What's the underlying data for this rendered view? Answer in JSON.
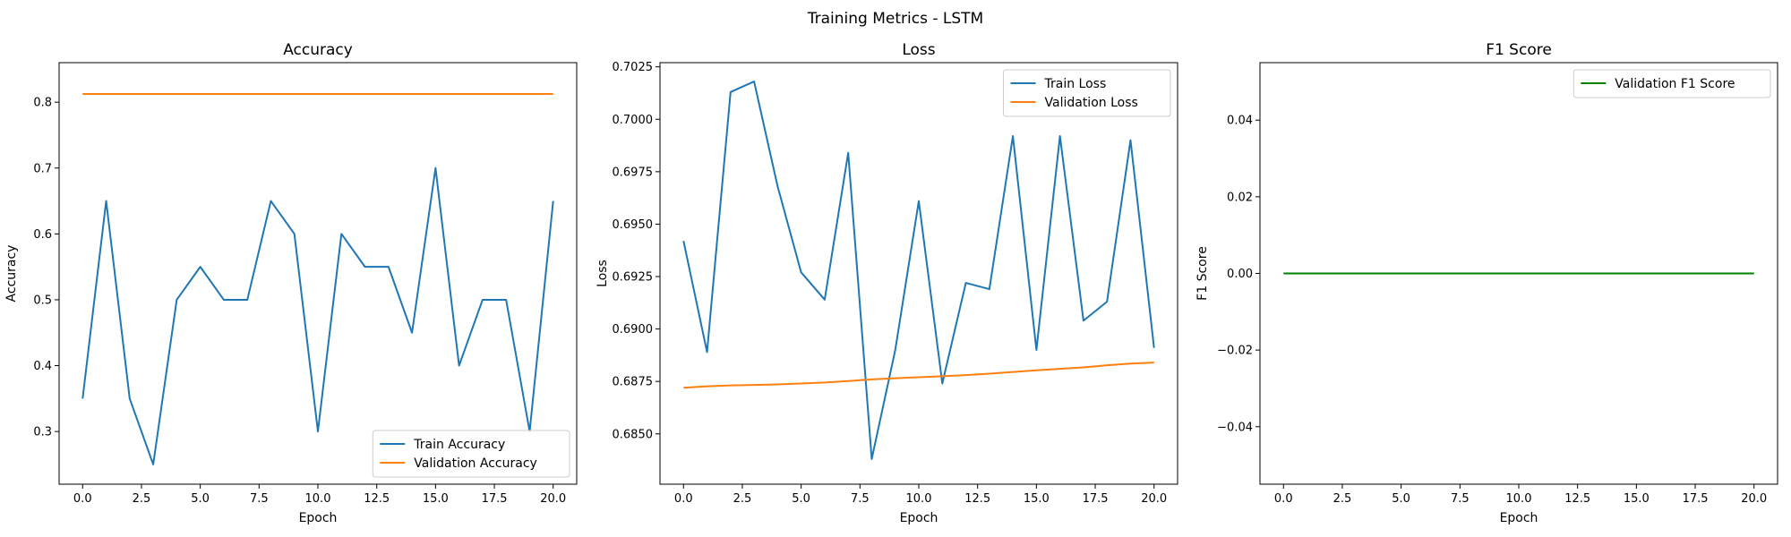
{
  "figure_title": "Training Metrics - LSTM",
  "chart_data": [
    {
      "type": "line",
      "title": "Accuracy",
      "xlabel": "Epoch",
      "ylabel": "Accuracy",
      "xlim": [
        -1,
        21
      ],
      "ylim": [
        0.22,
        0.86
      ],
      "xticks": [
        0.0,
        2.5,
        5.0,
        7.5,
        10.0,
        12.5,
        15.0,
        17.5,
        20.0
      ],
      "xtick_labels": [
        "0.0",
        "2.5",
        "5.0",
        "7.5",
        "10.0",
        "12.5",
        "15.0",
        "17.5",
        "20.0"
      ],
      "yticks": [
        0.3,
        0.4,
        0.5,
        0.6,
        0.7,
        0.8
      ],
      "ytick_labels": [
        "0.3",
        "0.4",
        "0.5",
        "0.6",
        "0.7",
        "0.8"
      ],
      "legend_loc": "lower-right",
      "series": [
        {
          "name": "Train Accuracy",
          "color": "#1f77b4",
          "x": [
            0,
            1,
            2,
            3,
            4,
            5,
            6,
            7,
            8,
            9,
            10,
            11,
            12,
            13,
            14,
            15,
            16,
            17,
            18,
            19,
            20
          ],
          "y": [
            0.35,
            0.65,
            0.35,
            0.25,
            0.5,
            0.55,
            0.5,
            0.5,
            0.65,
            0.6,
            0.3,
            0.6,
            0.55,
            0.55,
            0.45,
            0.7,
            0.4,
            0.5,
            0.5,
            0.3,
            0.65
          ]
        },
        {
          "name": "Validation Accuracy",
          "color": "#ff7f0e",
          "x": [
            0,
            1,
            2,
            3,
            4,
            5,
            6,
            7,
            8,
            9,
            10,
            11,
            12,
            13,
            14,
            15,
            16,
            17,
            18,
            19,
            20
          ],
          "y": [
            0.8125,
            0.8125,
            0.8125,
            0.8125,
            0.8125,
            0.8125,
            0.8125,
            0.8125,
            0.8125,
            0.8125,
            0.8125,
            0.8125,
            0.8125,
            0.8125,
            0.8125,
            0.8125,
            0.8125,
            0.8125,
            0.8125,
            0.8125,
            0.8125
          ]
        }
      ]
    },
    {
      "type": "line",
      "title": "Loss",
      "xlabel": "Epoch",
      "ylabel": "Loss",
      "xlim": [
        -1,
        21
      ],
      "ylim": [
        0.6826,
        0.7027
      ],
      "xticks": [
        0.0,
        2.5,
        5.0,
        7.5,
        10.0,
        12.5,
        15.0,
        17.5,
        20.0
      ],
      "xtick_labels": [
        "0.0",
        "2.5",
        "5.0",
        "7.5",
        "10.0",
        "12.5",
        "15.0",
        "17.5",
        "20.0"
      ],
      "yticks": [
        0.685,
        0.6875,
        0.69,
        0.6925,
        0.695,
        0.6975,
        0.7,
        0.7025
      ],
      "ytick_labels": [
        "0.6850",
        "0.6875",
        "0.6900",
        "0.6925",
        "0.6950",
        "0.6975",
        "0.7000",
        "0.7025"
      ],
      "legend_loc": "top-right",
      "series": [
        {
          "name": "Train Loss",
          "color": "#1f77b4",
          "x": [
            0,
            1,
            2,
            3,
            4,
            5,
            6,
            7,
            8,
            9,
            10,
            11,
            12,
            13,
            14,
            15,
            16,
            17,
            18,
            19,
            20
          ],
          "y": [
            0.6942,
            0.6889,
            0.7013,
            0.7018,
            0.6968,
            0.6927,
            0.6914,
            0.6984,
            0.6838,
            0.689,
            0.6961,
            0.6874,
            0.6922,
            0.6919,
            0.6992,
            0.689,
            0.6992,
            0.6904,
            0.6913,
            0.699,
            0.6891
          ]
        },
        {
          "name": "Validation Loss",
          "color": "#ff7f0e",
          "x": [
            0,
            1,
            2,
            3,
            4,
            5,
            6,
            7,
            8,
            9,
            10,
            11,
            12,
            13,
            14,
            15,
            16,
            17,
            18,
            19,
            20
          ],
          "y": [
            0.6872,
            0.68727,
            0.68731,
            0.68733,
            0.68736,
            0.6874,
            0.68745,
            0.68752,
            0.6876,
            0.68765,
            0.6877,
            0.68775,
            0.6878,
            0.68787,
            0.68795,
            0.68803,
            0.6881,
            0.68817,
            0.68827,
            0.68835,
            0.6884
          ]
        }
      ]
    },
    {
      "type": "line",
      "title": "F1 Score",
      "xlabel": "Epoch",
      "ylabel": "F1 Score",
      "xlim": [
        -1,
        21
      ],
      "ylim": [
        -0.055,
        0.055
      ],
      "xticks": [
        0.0,
        2.5,
        5.0,
        7.5,
        10.0,
        12.5,
        15.0,
        17.5,
        20.0
      ],
      "xtick_labels": [
        "0.0",
        "2.5",
        "5.0",
        "7.5",
        "10.0",
        "12.5",
        "15.0",
        "17.5",
        "20.0"
      ],
      "yticks": [
        -0.04,
        -0.02,
        0.0,
        0.02,
        0.04
      ],
      "ytick_labels": [
        "−0.04",
        "−0.02",
        "0.00",
        "0.02",
        "0.04"
      ],
      "legend_loc": "top-right",
      "series": [
        {
          "name": "Validation F1 Score",
          "color": "#008000",
          "x": [
            0,
            1,
            2,
            3,
            4,
            5,
            6,
            7,
            8,
            9,
            10,
            11,
            12,
            13,
            14,
            15,
            16,
            17,
            18,
            19,
            20
          ],
          "y": [
            0,
            0,
            0,
            0,
            0,
            0,
            0,
            0,
            0,
            0,
            0,
            0,
            0,
            0,
            0,
            0,
            0,
            0,
            0,
            0,
            0
          ]
        }
      ]
    }
  ]
}
